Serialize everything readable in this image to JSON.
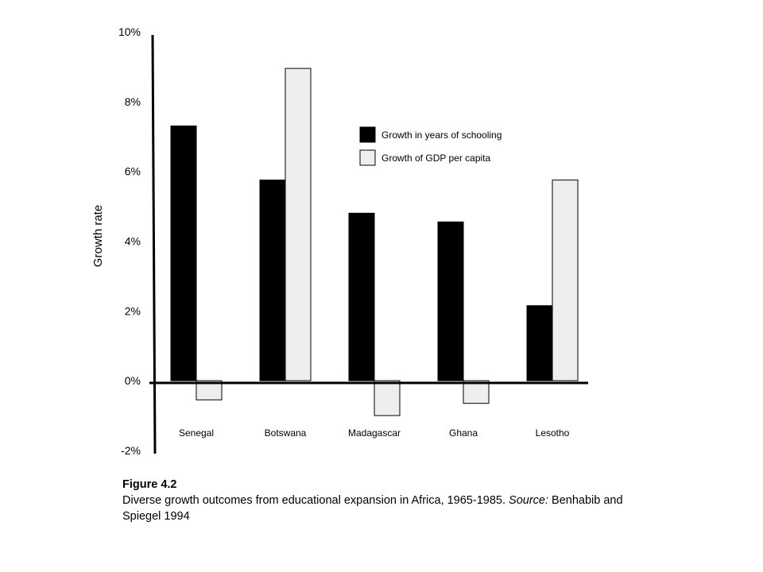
{
  "chart_data": {
    "type": "bar",
    "categories": [
      "Senegal",
      "Botswana",
      "Madagascar",
      "Ghana",
      "Lesotho"
    ],
    "series": [
      {
        "name": "Growth in years of schooling",
        "values": [
          7.3,
          5.75,
          4.8,
          4.55,
          2.15
        ],
        "color": "#000000"
      },
      {
        "name": "Growth of GDP per capita",
        "values": [
          -0.55,
          8.95,
          -1.0,
          -0.65,
          5.75
        ],
        "color": "#eeeeee"
      }
    ],
    "ylabel": "Growth rate",
    "ylim": [
      -2,
      10
    ],
    "yticks": [
      -2,
      0,
      2,
      4,
      6,
      8,
      10
    ],
    "ytick_labels": [
      "-2%",
      "0%",
      "2%",
      "4%",
      "6%",
      "8%",
      "10%"
    ],
    "legend_position": "top-right",
    "grid": false
  },
  "caption": {
    "title": "Figure 4.2",
    "text": "Diverse growth outcomes from educational expansion in Africa, 1965-1985. ",
    "source_label": "Source:",
    "source_text": " Benhabib and Spiegel 1994"
  }
}
